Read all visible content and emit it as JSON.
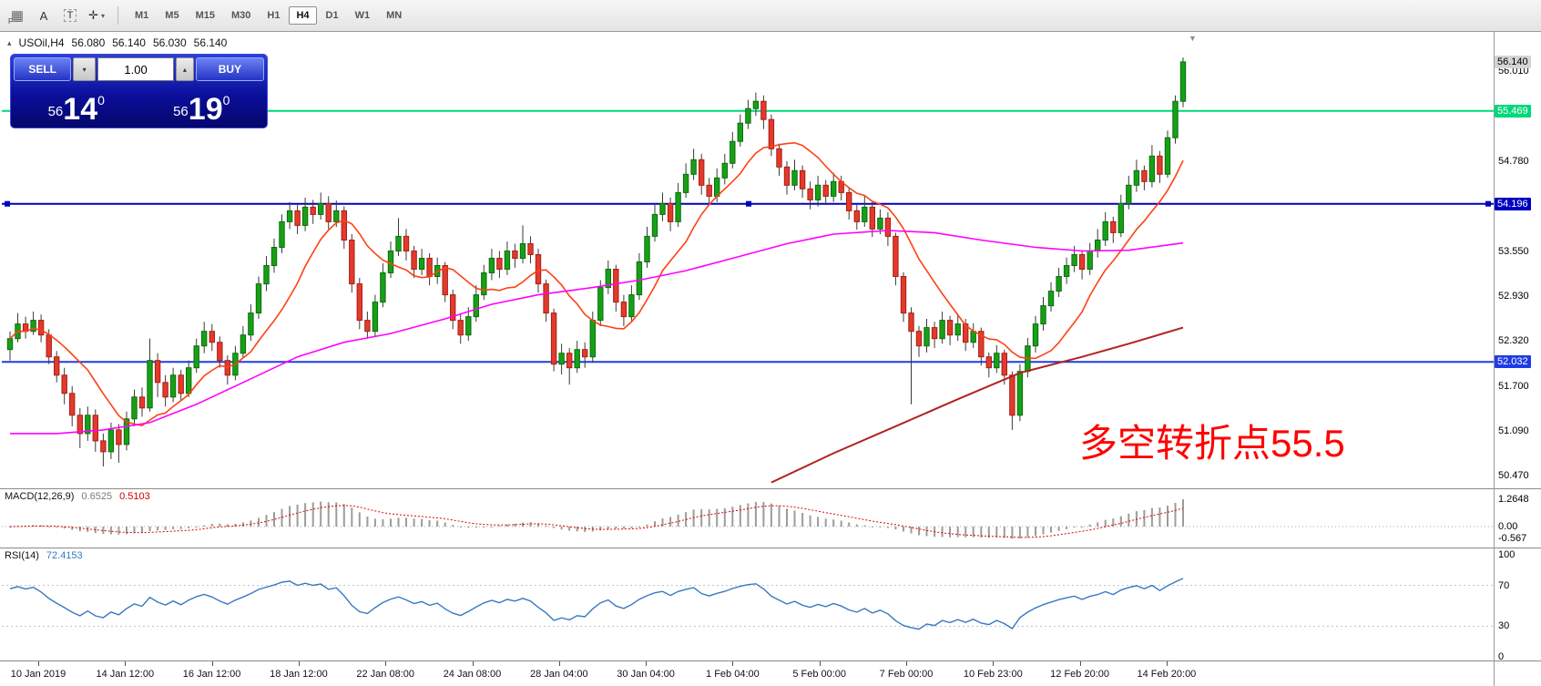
{
  "toolbar": {
    "window_icon": {
      "glyph": "▦",
      "label": "F"
    },
    "cursor_label": "A",
    "text_label": "T",
    "draw_glyph": "✛",
    "dropdown_glyph": "▾",
    "timeframes": [
      "M1",
      "M5",
      "M15",
      "M30",
      "H1",
      "H4",
      "D1",
      "W1",
      "MN"
    ],
    "active_timeframe": "H4"
  },
  "chart_header": {
    "arrow": "▴",
    "symbol_period": "USOil,H4",
    "open": "56.080",
    "high": "56.140",
    "low": "56.030",
    "close": "56.140"
  },
  "trade_panel": {
    "sell_label": "SELL",
    "buy_label": "BUY",
    "volume": "1.00",
    "dropdown_glyph": "▾",
    "spin_up_glyph": "▴",
    "sell_price": {
      "prefix": "56",
      "big": "14",
      "sup": "0"
    },
    "buy_price": {
      "prefix": "56",
      "big": "19",
      "sup": "0"
    }
  },
  "annotation": {
    "text": "多空转折点55.5",
    "color": "#FF0000"
  },
  "icons": {
    "shift_marker": "▼"
  },
  "price_axis": {
    "plain_labels": [
      "56.010",
      "54.780",
      "53.550",
      "52.930",
      "52.320",
      "51.700",
      "51.090",
      "50.470"
    ],
    "highlight_labels": [
      {
        "text": "56.140",
        "price": 56.14,
        "bg": "#D4D4D4",
        "fg": "#000000"
      },
      {
        "text": "55.469",
        "price": 55.469,
        "bg": "#00D97A",
        "fg": "#FFFFFF"
      },
      {
        "text": "54.196",
        "price": 54.196,
        "bg": "#0000C0",
        "fg": "#FFFFFF"
      },
      {
        "text": "52.032",
        "price": 52.032,
        "bg": "#1F3BE6",
        "fg": "#FFFFFF"
      }
    ]
  },
  "time_axis": {
    "labels": [
      "10 Jan 2019",
      "14 Jan 12:00",
      "16 Jan 12:00",
      "18 Jan 12:00",
      "22 Jan 08:00",
      "24 Jan 08:00",
      "28 Jan 04:00",
      "30 Jan 04:00",
      "1 Feb 04:00",
      "5 Feb 00:00",
      "7 Feb 00:00",
      "10 Feb 23:00",
      "12 Feb 20:00",
      "14 Feb 20:00"
    ]
  },
  "chart_data": {
    "type": "candlestick",
    "symbol": "USOil",
    "timeframe": "H4",
    "ohlc_current": {
      "open": 56.08,
      "high": 56.14,
      "low": 56.03,
      "close": 56.14
    },
    "current_price": 56.14,
    "price_range_view": [
      50.3,
      56.55
    ],
    "grid": false,
    "candles": [
      [
        52.2,
        52.45,
        52.05,
        52.35
      ],
      [
        52.35,
        52.7,
        52.3,
        52.55
      ],
      [
        52.55,
        52.65,
        52.35,
        52.45
      ],
      [
        52.45,
        52.72,
        52.4,
        52.6
      ],
      [
        52.6,
        52.68,
        52.3,
        52.4
      ],
      [
        52.4,
        52.48,
        52.0,
        52.1
      ],
      [
        52.1,
        52.18,
        51.75,
        51.85
      ],
      [
        51.85,
        51.95,
        51.45,
        51.6
      ],
      [
        51.6,
        51.7,
        51.15,
        51.3
      ],
      [
        51.3,
        51.4,
        50.85,
        51.05
      ],
      [
        51.05,
        51.42,
        50.95,
        51.3
      ],
      [
        51.3,
        51.38,
        50.8,
        50.95
      ],
      [
        50.95,
        51.05,
        50.6,
        50.8
      ],
      [
        50.8,
        51.2,
        50.7,
        51.1
      ],
      [
        51.1,
        51.18,
        50.65,
        50.9
      ],
      [
        50.9,
        51.35,
        50.82,
        51.25
      ],
      [
        51.25,
        51.65,
        51.15,
        51.55
      ],
      [
        51.55,
        51.68,
        51.28,
        51.4
      ],
      [
        51.4,
        52.35,
        51.35,
        52.05
      ],
      [
        52.05,
        52.15,
        51.55,
        51.75
      ],
      [
        51.75,
        51.85,
        51.42,
        51.55
      ],
      [
        51.55,
        51.95,
        51.48,
        51.85
      ],
      [
        51.85,
        51.92,
        51.5,
        51.6
      ],
      [
        51.6,
        52.05,
        51.55,
        51.95
      ],
      [
        51.95,
        52.35,
        51.88,
        52.25
      ],
      [
        52.25,
        52.58,
        52.15,
        52.45
      ],
      [
        52.45,
        52.55,
        52.18,
        52.3
      ],
      [
        52.3,
        52.38,
        51.95,
        52.05
      ],
      [
        52.05,
        52.12,
        51.72,
        51.85
      ],
      [
        51.85,
        52.25,
        51.78,
        52.15
      ],
      [
        52.15,
        52.52,
        52.08,
        52.4
      ],
      [
        52.4,
        52.82,
        52.32,
        52.7
      ],
      [
        52.7,
        53.2,
        52.62,
        53.1
      ],
      [
        53.1,
        53.48,
        53.0,
        53.35
      ],
      [
        53.35,
        53.72,
        53.25,
        53.6
      ],
      [
        53.6,
        54.05,
        53.52,
        53.95
      ],
      [
        53.95,
        54.22,
        53.85,
        54.1
      ],
      [
        54.1,
        54.18,
        53.78,
        53.9
      ],
      [
        53.9,
        54.28,
        53.82,
        54.15
      ],
      [
        54.15,
        54.25,
        53.92,
        54.05
      ],
      [
        54.05,
        54.35,
        53.98,
        54.2
      ],
      [
        54.2,
        54.3,
        53.85,
        53.95
      ],
      [
        53.95,
        54.24,
        53.88,
        54.1
      ],
      [
        54.1,
        54.16,
        53.58,
        53.7
      ],
      [
        53.7,
        53.78,
        52.98,
        53.1
      ],
      [
        53.1,
        53.18,
        52.48,
        52.6
      ],
      [
        52.6,
        52.72,
        52.35,
        52.45
      ],
      [
        52.45,
        52.95,
        52.38,
        52.85
      ],
      [
        52.85,
        53.38,
        52.78,
        53.25
      ],
      [
        53.25,
        53.68,
        53.18,
        53.55
      ],
      [
        53.55,
        54.0,
        53.48,
        53.75
      ],
      [
        53.75,
        53.85,
        53.42,
        53.55
      ],
      [
        53.55,
        53.62,
        53.18,
        53.3
      ],
      [
        53.3,
        53.58,
        53.22,
        53.45
      ],
      [
        53.45,
        53.52,
        53.08,
        53.2
      ],
      [
        53.2,
        53.46,
        53.1,
        53.35
      ],
      [
        53.35,
        53.4,
        52.85,
        52.95
      ],
      [
        52.95,
        53.02,
        52.48,
        52.6
      ],
      [
        52.6,
        52.68,
        52.28,
        52.4
      ],
      [
        52.4,
        52.78,
        52.32,
        52.65
      ],
      [
        52.65,
        53.08,
        52.58,
        52.95
      ],
      [
        52.95,
        53.36,
        52.88,
        53.25
      ],
      [
        53.25,
        53.58,
        53.15,
        53.45
      ],
      [
        53.45,
        53.55,
        53.18,
        53.3
      ],
      [
        53.3,
        53.68,
        53.22,
        53.55
      ],
      [
        53.55,
        53.65,
        53.32,
        53.45
      ],
      [
        53.45,
        53.9,
        53.38,
        53.65
      ],
      [
        53.65,
        53.75,
        53.38,
        53.5
      ],
      [
        53.5,
        53.58,
        52.98,
        53.1
      ],
      [
        53.1,
        53.16,
        52.58,
        52.7
      ],
      [
        52.7,
        52.76,
        51.9,
        52.0
      ],
      [
        52.0,
        52.28,
        51.86,
        52.15
      ],
      [
        52.15,
        52.22,
        51.72,
        51.95
      ],
      [
        51.95,
        52.32,
        51.88,
        52.2
      ],
      [
        52.2,
        52.3,
        51.95,
        52.1
      ],
      [
        52.1,
        52.72,
        52.02,
        52.6
      ],
      [
        52.6,
        53.15,
        52.52,
        53.05
      ],
      [
        53.05,
        53.42,
        52.96,
        53.3
      ],
      [
        53.3,
        53.36,
        52.72,
        52.85
      ],
      [
        52.85,
        52.95,
        52.52,
        52.65
      ],
      [
        52.65,
        53.08,
        52.58,
        52.95
      ],
      [
        52.95,
        53.52,
        52.88,
        53.4
      ],
      [
        53.4,
        53.88,
        53.32,
        53.75
      ],
      [
        53.75,
        54.18,
        53.68,
        54.05
      ],
      [
        54.05,
        54.35,
        53.96,
        54.2
      ],
      [
        54.2,
        54.28,
        53.82,
        53.95
      ],
      [
        53.95,
        54.48,
        53.88,
        54.35
      ],
      [
        54.35,
        54.75,
        54.28,
        54.6
      ],
      [
        54.6,
        54.95,
        54.52,
        54.8
      ],
      [
        54.8,
        54.88,
        54.32,
        54.45
      ],
      [
        54.45,
        54.55,
        54.18,
        54.3
      ],
      [
        54.3,
        54.68,
        54.22,
        54.55
      ],
      [
        54.55,
        54.88,
        54.46,
        54.75
      ],
      [
        54.75,
        55.18,
        54.68,
        55.05
      ],
      [
        55.05,
        55.42,
        54.98,
        55.3
      ],
      [
        55.3,
        55.62,
        55.22,
        55.5
      ],
      [
        55.5,
        55.72,
        55.4,
        55.6
      ],
      [
        55.6,
        55.68,
        55.22,
        55.35
      ],
      [
        55.35,
        55.42,
        54.85,
        54.95
      ],
      [
        54.95,
        55.02,
        54.58,
        54.7
      ],
      [
        54.7,
        54.78,
        54.32,
        54.45
      ],
      [
        54.45,
        54.8,
        54.38,
        54.65
      ],
      [
        54.65,
        54.72,
        54.28,
        54.4
      ],
      [
        54.4,
        54.5,
        54.12,
        54.25
      ],
      [
        54.25,
        54.58,
        54.16,
        54.45
      ],
      [
        54.45,
        54.52,
        54.18,
        54.3
      ],
      [
        54.3,
        54.62,
        54.22,
        54.5
      ],
      [
        54.5,
        54.58,
        54.24,
        54.35
      ],
      [
        54.35,
        54.42,
        53.98,
        54.1
      ],
      [
        54.1,
        54.18,
        53.84,
        53.95
      ],
      [
        53.95,
        54.3,
        53.88,
        54.15
      ],
      [
        54.15,
        54.22,
        53.74,
        53.85
      ],
      [
        53.85,
        54.12,
        53.78,
        54.0
      ],
      [
        54.0,
        54.08,
        53.62,
        53.75
      ],
      [
        53.75,
        53.8,
        53.08,
        53.2
      ],
      [
        53.2,
        53.26,
        52.58,
        52.7
      ],
      [
        52.7,
        52.78,
        51.45,
        52.45
      ],
      [
        52.45,
        52.52,
        52.1,
        52.25
      ],
      [
        52.25,
        52.62,
        52.16,
        52.5
      ],
      [
        52.5,
        52.58,
        52.22,
        52.35
      ],
      [
        52.35,
        52.72,
        52.28,
        52.6
      ],
      [
        52.6,
        52.66,
        52.26,
        52.4
      ],
      [
        52.4,
        52.68,
        52.32,
        52.55
      ],
      [
        52.55,
        52.62,
        52.18,
        52.3
      ],
      [
        52.3,
        52.56,
        52.22,
        52.45
      ],
      [
        52.45,
        52.5,
        51.98,
        52.1
      ],
      [
        52.1,
        52.16,
        51.82,
        51.95
      ],
      [
        51.95,
        52.26,
        51.88,
        52.15
      ],
      [
        52.15,
        52.2,
        51.72,
        51.85
      ],
      [
        51.85,
        51.9,
        51.1,
        51.3
      ],
      [
        51.3,
        52.0,
        51.22,
        51.9
      ],
      [
        51.9,
        52.36,
        51.82,
        52.25
      ],
      [
        52.25,
        52.66,
        52.16,
        52.55
      ],
      [
        52.55,
        52.92,
        52.46,
        52.8
      ],
      [
        52.8,
        53.12,
        52.72,
        53.0
      ],
      [
        53.0,
        53.32,
        52.92,
        53.2
      ],
      [
        53.2,
        53.46,
        53.1,
        53.35
      ],
      [
        53.35,
        53.62,
        53.26,
        53.5
      ],
      [
        53.5,
        53.56,
        53.16,
        53.3
      ],
      [
        53.3,
        53.66,
        53.22,
        53.55
      ],
      [
        53.55,
        53.85,
        53.46,
        53.7
      ],
      [
        53.7,
        54.08,
        53.62,
        53.95
      ],
      [
        53.95,
        54.02,
        53.66,
        53.8
      ],
      [
        53.8,
        54.32,
        53.74,
        54.2
      ],
      [
        54.2,
        54.58,
        54.12,
        54.45
      ],
      [
        54.45,
        54.8,
        54.36,
        54.65
      ],
      [
        54.65,
        54.72,
        54.38,
        54.5
      ],
      [
        54.5,
        55.0,
        54.42,
        54.85
      ],
      [
        54.85,
        54.92,
        54.48,
        54.6
      ],
      [
        54.6,
        55.2,
        54.55,
        55.1
      ],
      [
        55.1,
        55.68,
        55.02,
        55.6
      ],
      [
        55.6,
        56.2,
        55.52,
        56.14
      ]
    ],
    "colors": {
      "bull": "#17A017",
      "bull_border": "#0A6E0A",
      "bear": "#E23A2C",
      "bear_border": "#A81E14",
      "wick": "#3A3A3A"
    },
    "overlays": {
      "ma_fast": {
        "name": "fast moving average",
        "method": "sma",
        "period": 10,
        "color": "#FF4014"
      },
      "ma_slow": {
        "name": "slow moving average",
        "color": "#FF00FF",
        "points": [
          [
            0,
            51.05
          ],
          [
            6,
            51.05
          ],
          [
            12,
            51.1
          ],
          [
            18,
            51.2
          ],
          [
            24,
            51.45
          ],
          [
            30,
            51.75
          ],
          [
            37,
            52.1
          ],
          [
            43,
            52.3
          ],
          [
            49,
            52.42
          ],
          [
            56,
            52.62
          ],
          [
            62,
            52.82
          ],
          [
            68,
            52.95
          ],
          [
            75,
            53.05
          ],
          [
            81,
            53.15
          ],
          [
            87,
            53.28
          ],
          [
            93,
            53.45
          ],
          [
            100,
            53.65
          ],
          [
            106,
            53.78
          ],
          [
            113,
            53.83
          ],
          [
            119,
            53.8
          ],
          [
            125,
            53.7
          ],
          [
            132,
            53.6
          ],
          [
            138,
            53.55
          ],
          [
            144,
            53.56
          ],
          [
            151,
            53.66
          ]
        ]
      },
      "ma_long": {
        "name": "long-term moving average",
        "color": "#B22222",
        "points": [
          [
            98,
            50.38
          ],
          [
            106,
            50.78
          ],
          [
            114,
            51.15
          ],
          [
            122,
            51.52
          ],
          [
            130,
            51.88
          ],
          [
            138,
            52.1
          ],
          [
            144,
            52.28
          ],
          [
            151,
            52.5
          ]
        ]
      },
      "hlines": [
        {
          "price": 55.469,
          "color": "#00D97A",
          "selected": false
        },
        {
          "price": 54.196,
          "color": "#0000C0",
          "selected": true
        },
        {
          "price": 52.032,
          "color": "#1F3BE6",
          "selected": false
        }
      ]
    },
    "indicators": {
      "macd": {
        "label": "MACD(12,26,9)",
        "fast": 12,
        "slow": 26,
        "signal": 9,
        "current_main": "0.6525",
        "current_signal": "0.5103",
        "scale": {
          "max": 1.2648,
          "zero": 0.0,
          "min": -0.567
        },
        "axis_labels": [
          {
            "text": "1.2648",
            "value": 1.2648
          },
          {
            "text": "0.00",
            "value": 0
          },
          {
            "text": "-0.567",
            "value": -0.567
          }
        ],
        "histogram_color": "#9C9C9C",
        "signal_color": "#E00000"
      },
      "rsi": {
        "label": "RSI(14)",
        "period": 14,
        "current": "72.4153",
        "scale": [
          0,
          100
        ],
        "levels": [
          70,
          30
        ],
        "axis_labels": [
          {
            "text": "100",
            "value": 100
          },
          {
            "text": "70",
            "value": 70
          },
          {
            "text": "30",
            "value": 30
          },
          {
            "text": "0",
            "value": 0
          }
        ],
        "color": "#3779C2"
      }
    }
  }
}
